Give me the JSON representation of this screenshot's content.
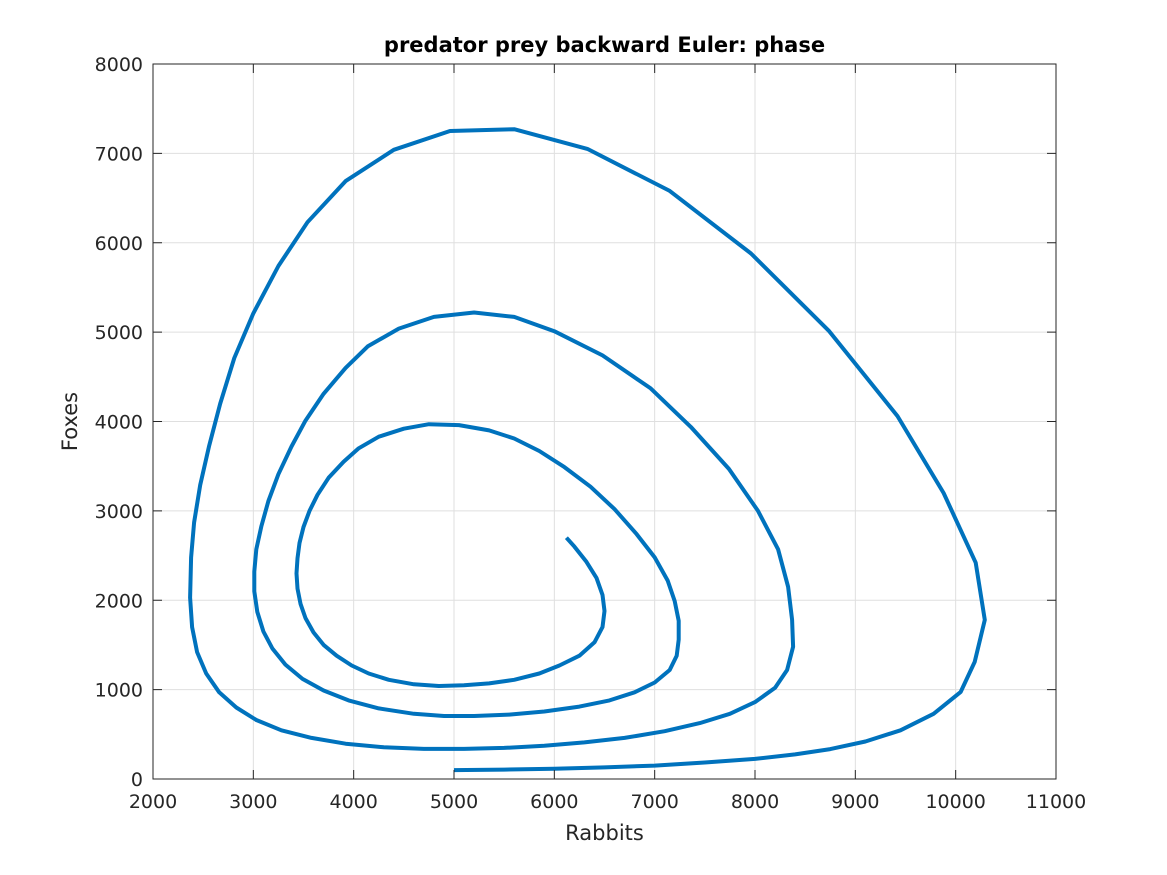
{
  "chart_data": {
    "type": "line",
    "title": "predator prey backward Euler: phase",
    "xlabel": "Rabbits",
    "ylabel": "Foxes",
    "xlim": [
      2000,
      11000
    ],
    "ylim": [
      0,
      8000
    ],
    "xticks": [
      2000,
      3000,
      4000,
      5000,
      6000,
      7000,
      8000,
      9000,
      10000,
      11000
    ],
    "yticks": [
      0,
      1000,
      2000,
      3000,
      4000,
      5000,
      6000,
      7000,
      8000
    ],
    "grid": true,
    "box": true,
    "series": [
      {
        "color": "#0072BD",
        "points": [
          [
            5000,
            100
          ],
          [
            5500,
            105
          ],
          [
            6000,
            115
          ],
          [
            6500,
            130
          ],
          [
            7000,
            150
          ],
          [
            7500,
            185
          ],
          [
            8000,
            225
          ],
          [
            8400,
            275
          ],
          [
            8750,
            335
          ],
          [
            9100,
            420
          ],
          [
            9450,
            545
          ],
          [
            9780,
            730
          ],
          [
            10050,
            975
          ],
          [
            10190,
            1310
          ],
          [
            10290,
            1780
          ],
          [
            10200,
            2420
          ],
          [
            9880,
            3200
          ],
          [
            9420,
            4060
          ],
          [
            8740,
            5010
          ],
          [
            7960,
            5880
          ],
          [
            7150,
            6580
          ],
          [
            6330,
            7050
          ],
          [
            5600,
            7270
          ],
          [
            4960,
            7250
          ],
          [
            4400,
            7040
          ],
          [
            3920,
            6690
          ],
          [
            3540,
            6230
          ],
          [
            3250,
            5740
          ],
          [
            3000,
            5210
          ],
          [
            2810,
            4710
          ],
          [
            2670,
            4200
          ],
          [
            2560,
            3730
          ],
          [
            2470,
            3290
          ],
          [
            2410,
            2870
          ],
          [
            2380,
            2480
          ],
          [
            2370,
            2030
          ],
          [
            2390,
            1700
          ],
          [
            2440,
            1420
          ],
          [
            2530,
            1180
          ],
          [
            2660,
            970
          ],
          [
            2830,
            800
          ],
          [
            3030,
            660
          ],
          [
            3280,
            545
          ],
          [
            3580,
            460
          ],
          [
            3920,
            395
          ],
          [
            4300,
            355
          ],
          [
            4700,
            337
          ],
          [
            5100,
            337
          ],
          [
            5500,
            348
          ],
          [
            5900,
            372
          ],
          [
            6300,
            410
          ],
          [
            6700,
            460
          ],
          [
            7100,
            535
          ],
          [
            7450,
            625
          ],
          [
            7750,
            730
          ],
          [
            8000,
            860
          ],
          [
            8200,
            1020
          ],
          [
            8320,
            1220
          ],
          [
            8380,
            1480
          ],
          [
            8370,
            1780
          ],
          [
            8330,
            2150
          ],
          [
            8230,
            2570
          ],
          [
            8030,
            3000
          ],
          [
            7740,
            3470
          ],
          [
            7360,
            3940
          ],
          [
            6960,
            4370
          ],
          [
            6480,
            4740
          ],
          [
            6000,
            5010
          ],
          [
            5600,
            5170
          ],
          [
            5200,
            5220
          ],
          [
            4800,
            5170
          ],
          [
            4450,
            5040
          ],
          [
            4140,
            4840
          ],
          [
            3920,
            4600
          ],
          [
            3700,
            4310
          ],
          [
            3520,
            4010
          ],
          [
            3380,
            3720
          ],
          [
            3250,
            3410
          ],
          [
            3150,
            3110
          ],
          [
            3080,
            2830
          ],
          [
            3030,
            2570
          ],
          [
            3010,
            2320
          ],
          [
            3010,
            2100
          ],
          [
            3040,
            1870
          ],
          [
            3100,
            1650
          ],
          [
            3190,
            1460
          ],
          [
            3320,
            1280
          ],
          [
            3490,
            1120
          ],
          [
            3700,
            990
          ],
          [
            3950,
            880
          ],
          [
            4250,
            790
          ],
          [
            4600,
            730
          ],
          [
            4900,
            705
          ],
          [
            5200,
            705
          ],
          [
            5550,
            720
          ],
          [
            5900,
            755
          ],
          [
            6250,
            810
          ],
          [
            6550,
            880
          ],
          [
            6800,
            970
          ],
          [
            7000,
            1080
          ],
          [
            7150,
            1220
          ],
          [
            7220,
            1380
          ],
          [
            7240,
            1560
          ],
          [
            7240,
            1770
          ],
          [
            7200,
            1990
          ],
          [
            7130,
            2220
          ],
          [
            7000,
            2480
          ],
          [
            6820,
            2740
          ],
          [
            6600,
            3020
          ],
          [
            6360,
            3270
          ],
          [
            6100,
            3490
          ],
          [
            5850,
            3670
          ],
          [
            5600,
            3810
          ],
          [
            5350,
            3900
          ],
          [
            5050,
            3960
          ],
          [
            4750,
            3970
          ],
          [
            4500,
            3920
          ],
          [
            4250,
            3830
          ],
          [
            4050,
            3700
          ],
          [
            3900,
            3550
          ],
          [
            3750,
            3370
          ],
          [
            3640,
            3180
          ],
          [
            3560,
            3000
          ],
          [
            3500,
            2820
          ],
          [
            3460,
            2640
          ],
          [
            3440,
            2470
          ],
          [
            3430,
            2300
          ],
          [
            3440,
            2130
          ],
          [
            3470,
            1960
          ],
          [
            3520,
            1800
          ],
          [
            3600,
            1640
          ],
          [
            3700,
            1500
          ],
          [
            3830,
            1380
          ],
          [
            3980,
            1270
          ],
          [
            4150,
            1180
          ],
          [
            4350,
            1110
          ],
          [
            4600,
            1060
          ],
          [
            4850,
            1040
          ],
          [
            5100,
            1050
          ],
          [
            5350,
            1070
          ],
          [
            5600,
            1110
          ],
          [
            5850,
            1180
          ],
          [
            6050,
            1270
          ],
          [
            6250,
            1380
          ],
          [
            6400,
            1530
          ],
          [
            6480,
            1700
          ],
          [
            6500,
            1880
          ],
          [
            6480,
            2060
          ],
          [
            6420,
            2250
          ],
          [
            6320,
            2430
          ],
          [
            6200,
            2600
          ],
          [
            6120,
            2700
          ]
        ]
      }
    ]
  }
}
